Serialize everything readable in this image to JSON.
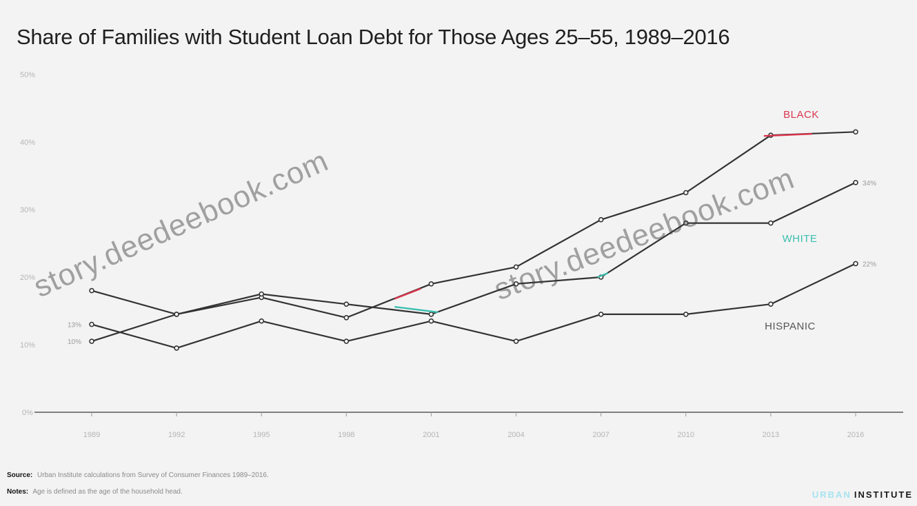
{
  "chart_data": {
    "type": "line",
    "title": "Share of Families with Student Loan Debt for Those Ages 25–55, 1989–2016",
    "xlabel": "",
    "ylabel": "",
    "x": [
      "1989",
      "1992",
      "1995",
      "1998",
      "2001",
      "2004",
      "2007",
      "2010",
      "2013",
      "2016"
    ],
    "ylim": [
      0,
      50
    ],
    "yticks": [
      "50%",
      "40%",
      "30%",
      "20%",
      "10%",
      "0%"
    ],
    "grid": false,
    "legend": "direct labels at line ends",
    "series": [
      {
        "name": "BLACK",
        "color": "#333333",
        "highlight": "#d9354c",
        "values": [
          18,
          14.5,
          17,
          14,
          19,
          21.5,
          28.5,
          32.5,
          41,
          41.5
        ]
      },
      {
        "name": "WHITE",
        "color": "#333333",
        "highlight": "#3bbfae",
        "values": [
          10.5,
          14.5,
          17.5,
          16,
          14.5,
          19,
          20,
          28,
          28,
          34
        ]
      },
      {
        "name": "HISPANIC",
        "color": "#333333",
        "highlight": null,
        "values": [
          13,
          9.5,
          13.5,
          10.5,
          13.5,
          10.5,
          14.5,
          14.5,
          16,
          22
        ]
      }
    ],
    "start_labels": [
      "13%",
      "10%"
    ],
    "end_labels": [
      "34%",
      "22%"
    ]
  },
  "footer": {
    "source_label": "Source:",
    "source_text": "Urban Institute calculations from Survey of Consumer Finances 1989–2016.",
    "notes_label": "Notes:",
    "notes_text": "Age is defined as the age of the household head.",
    "brand_first": "URBAN",
    "brand_second": "INSTITUTE"
  },
  "watermark": "story.deedeebook.com"
}
